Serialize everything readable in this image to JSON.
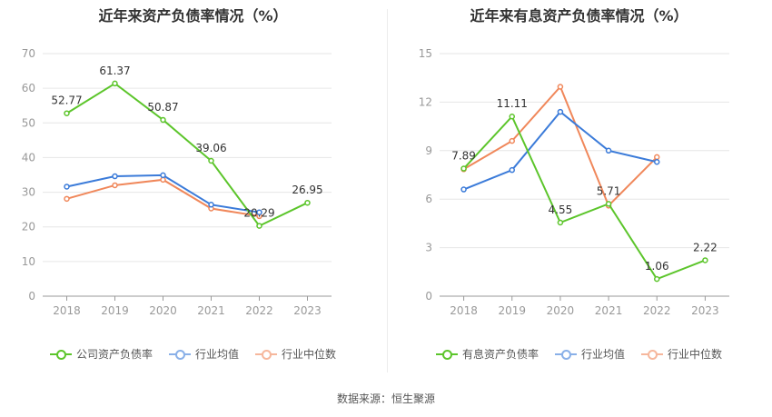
{
  "source": "数据来源：恒生聚源",
  "chart_data": [
    {
      "type": "line",
      "title": "近年来资产负债率情况（%）",
      "categories": [
        "2018",
        "2019",
        "2020",
        "2021",
        "2022",
        "2023"
      ],
      "ylim": [
        0,
        70
      ],
      "yticks": [
        0,
        10,
        20,
        30,
        40,
        50,
        60,
        70
      ],
      "grid": true,
      "legend_position": "bottom",
      "series": [
        {
          "name": "公司资产负债率",
          "color": "#5cc52b",
          "labeled": true,
          "values": [
            52.77,
            61.37,
            50.87,
            39.06,
            20.29,
            26.95
          ],
          "labels": [
            "52.77",
            "61.37",
            "50.87",
            "39.06",
            "20.29",
            "26.95"
          ]
        },
        {
          "name": "行业均值",
          "color": "#3b7bd9",
          "labeled": false,
          "values": [
            31.6,
            34.6,
            34.9,
            26.4,
            24.2,
            null
          ]
        },
        {
          "name": "行业中位数",
          "color": "#f0875a",
          "labeled": false,
          "values": [
            28.1,
            32.0,
            33.6,
            25.3,
            23.1,
            null
          ]
        }
      ]
    },
    {
      "type": "line",
      "title": "近年来有息资产负债率情况（%）",
      "categories": [
        "2018",
        "2019",
        "2020",
        "2021",
        "2022",
        "2023"
      ],
      "ylim": [
        0,
        15
      ],
      "yticks": [
        0,
        3,
        6,
        9,
        12,
        15
      ],
      "grid": true,
      "legend_position": "bottom",
      "series": [
        {
          "name": "有息资产负债率",
          "color": "#5cc52b",
          "labeled": true,
          "values": [
            7.89,
            11.11,
            4.55,
            5.71,
            1.06,
            2.22
          ],
          "labels": [
            "7.89",
            "11.11",
            "4.55",
            "5.71",
            "1.06",
            "2.22"
          ]
        },
        {
          "name": "行业均值",
          "color": "#3b7bd9",
          "labeled": false,
          "values": [
            6.6,
            7.8,
            11.4,
            9.0,
            8.3,
            null
          ]
        },
        {
          "name": "行业中位数",
          "color": "#f0875a",
          "labeled": false,
          "values": [
            7.85,
            9.6,
            12.95,
            5.6,
            8.6,
            null
          ]
        }
      ]
    }
  ]
}
